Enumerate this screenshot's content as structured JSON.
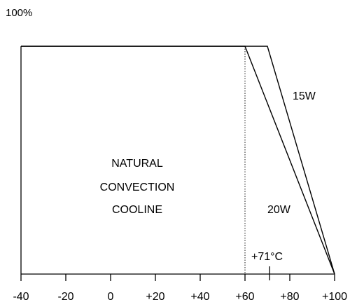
{
  "chart_data": {
    "type": "line",
    "title": "",
    "xlabel": "",
    "ylabel": "",
    "y_top_label": "100%",
    "xlim": [
      -40,
      100
    ],
    "ylim": [
      0,
      100
    ],
    "x_ticks": [
      -40,
      -20,
      0,
      20,
      40,
      60,
      80,
      100
    ],
    "x_tick_labels": [
      "-40",
      "-20",
      "0",
      "+20",
      "+40",
      "+60",
      "+80",
      "+100"
    ],
    "series": [
      {
        "name": "15W",
        "x": [
          -40,
          70,
          100
        ],
        "y": [
          100,
          100,
          0
        ]
      },
      {
        "name": "20W",
        "x": [
          -40,
          60,
          100
        ],
        "y": [
          100,
          100,
          0
        ]
      }
    ],
    "reference_line": {
      "x": 60,
      "style": "dotted"
    },
    "marker": {
      "x": 71,
      "label": "+71°C"
    },
    "region_label": [
      "NATURAL",
      "CONVECTION",
      "COOLINE"
    ],
    "grid": false
  }
}
